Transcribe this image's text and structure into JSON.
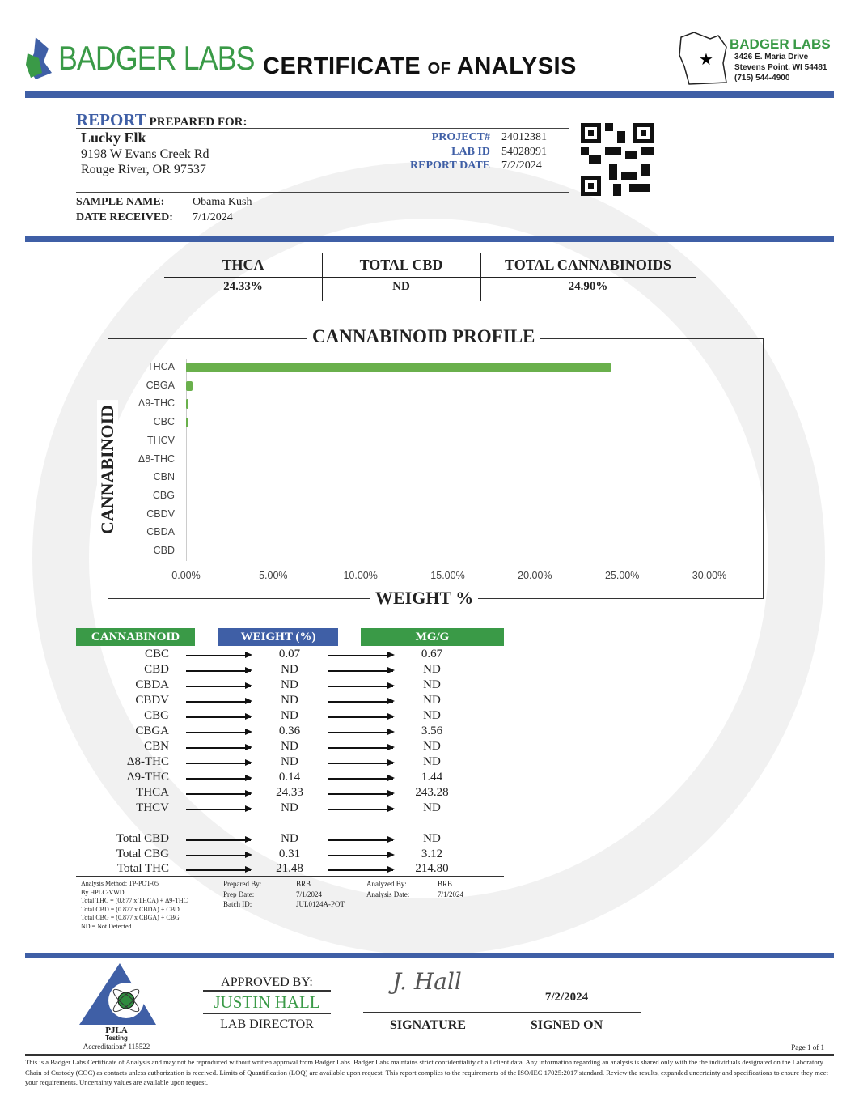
{
  "header": {
    "logo_text": "BADGER LABS",
    "title_a": "CERTIFICATE",
    "title_of": "OF",
    "title_b": "ANALYSIS",
    "lab_name": "BADGER LABS",
    "address1": "3426 E. Maria Drive",
    "address2": "Stevens Point, WI 54481",
    "phone": "(715) 544-4900",
    "brand_green": "#3a9a47",
    "brand_blue": "#3f5fa6"
  },
  "client": {
    "report_label": "REPORT",
    "prepared_for": "PREPARED FOR:",
    "name": "Lucky Elk",
    "street": "9198 W Evans Creek Rd",
    "city": "Rouge River, OR 97537"
  },
  "report": {
    "project_label": "PROJECT#",
    "project": "24012381",
    "labid_label": "LAB ID",
    "labid": "54028991",
    "date_label": "REPORT DATE",
    "date": "7/2/2024"
  },
  "sample": {
    "name_label": "SAMPLE NAME:",
    "name": "Obama Kush",
    "received_label": "DATE RECEIVED:",
    "received": "7/1/2024"
  },
  "summary": [
    {
      "label": "THCA",
      "value": "24.33%"
    },
    {
      "label": "TOTAL CBD",
      "value": "ND"
    },
    {
      "label": "TOTAL CANNABINOIDS",
      "value": "24.90%"
    }
  ],
  "chart_data": {
    "type": "bar",
    "orientation": "horizontal",
    "title": "CANNABINOID PROFILE",
    "xlabel": "WEIGHT %",
    "ylabel": "CANNABINOID",
    "categories": [
      "THCA",
      "CBGA",
      "Δ9-THC",
      "CBC",
      "THCV",
      "Δ8-THC",
      "CBN",
      "CBG",
      "CBDV",
      "CBDA",
      "CBD"
    ],
    "values": [
      24.33,
      0.36,
      0.14,
      0.07,
      0,
      0,
      0,
      0,
      0,
      0,
      0
    ],
    "xlim": [
      0,
      30
    ],
    "ticks": [
      "0.00%",
      "5.00%",
      "10.00%",
      "15.00%",
      "20.00%",
      "25.00%",
      "30.00%"
    ],
    "bar_color": "#6ab04c",
    "grid": false
  },
  "table": {
    "headers": [
      "CANNABINOID",
      "WEIGHT (%)",
      "MG/G"
    ],
    "rows": [
      [
        "CBC",
        "0.07",
        "0.67"
      ],
      [
        "CBD",
        "ND",
        "ND"
      ],
      [
        "CBDA",
        "ND",
        "ND"
      ],
      [
        "CBDV",
        "ND",
        "ND"
      ],
      [
        "CBG",
        "ND",
        "ND"
      ],
      [
        "CBGA",
        "0.36",
        "3.56"
      ],
      [
        "CBN",
        "ND",
        "ND"
      ],
      [
        "Δ8-THC",
        "ND",
        "ND"
      ],
      [
        "Δ9-THC",
        "0.14",
        "1.44"
      ],
      [
        "THCA",
        "24.33",
        "243.28"
      ],
      [
        "THCV",
        "ND",
        "ND"
      ]
    ],
    "totals": [
      [
        "Total CBD",
        "ND",
        "ND"
      ],
      [
        "Total CBG",
        "0.31",
        "3.12"
      ],
      [
        "Total THC",
        "21.48",
        "214.80"
      ]
    ]
  },
  "method": {
    "lines": [
      "Analysis Method: TP-POT-05",
      "By HPLC-VWD",
      "Total THC = (0.877 x  THCA) + Δ9-THC",
      "Total CBD = (0.877 x  CBDA) + CBD",
      "Total CBG = (0.877 x  CBGA) + CBG",
      "ND = Not Detected"
    ],
    "prepared_by_label": "Prepared By:",
    "prepared_by": "BRB",
    "prep_date_label": "Prep Date:",
    "prep_date": "7/1/2024",
    "batch_label": "Batch ID:",
    "batch": "JUL0124A-POT",
    "analyzed_by_label": "Analyzed By:",
    "analyzed_by": "BRB",
    "analysis_date_label": "Analysis Date:",
    "analysis_date": "7/1/2024"
  },
  "footer": {
    "pjla": "PJLA",
    "testing": "Testing",
    "accreditation": "Accreditation# 115522",
    "approved_by": "APPROVED BY:",
    "approver": "JUSTIN HALL",
    "role": "LAB DIRECTOR",
    "signature": "J. Hall",
    "signature_label": "SIGNATURE",
    "signed_date": "7/2/2024",
    "signed_on_label": "SIGNED ON",
    "page": "Page 1 of 1",
    "disclaimer": "This is a Badger Labs Certificate of Analysis and may not be reproduced without written approval from Badger Labs. Badger Labs maintains strict confidentiality of all client data. Any information regarding an analysis is shared only with the the individuals designated on the Laboratory Chain of Custody (COC) as contacts unless authorization is received. Limits of Quantification (LOQ) are available upon request. This report complies to the requirements of the ISO/IEC 17025:2017 standard. Review the results, expanded uncertainty and specifications to ensure they meet your requirements. Uncertainty values are available upon request."
  }
}
